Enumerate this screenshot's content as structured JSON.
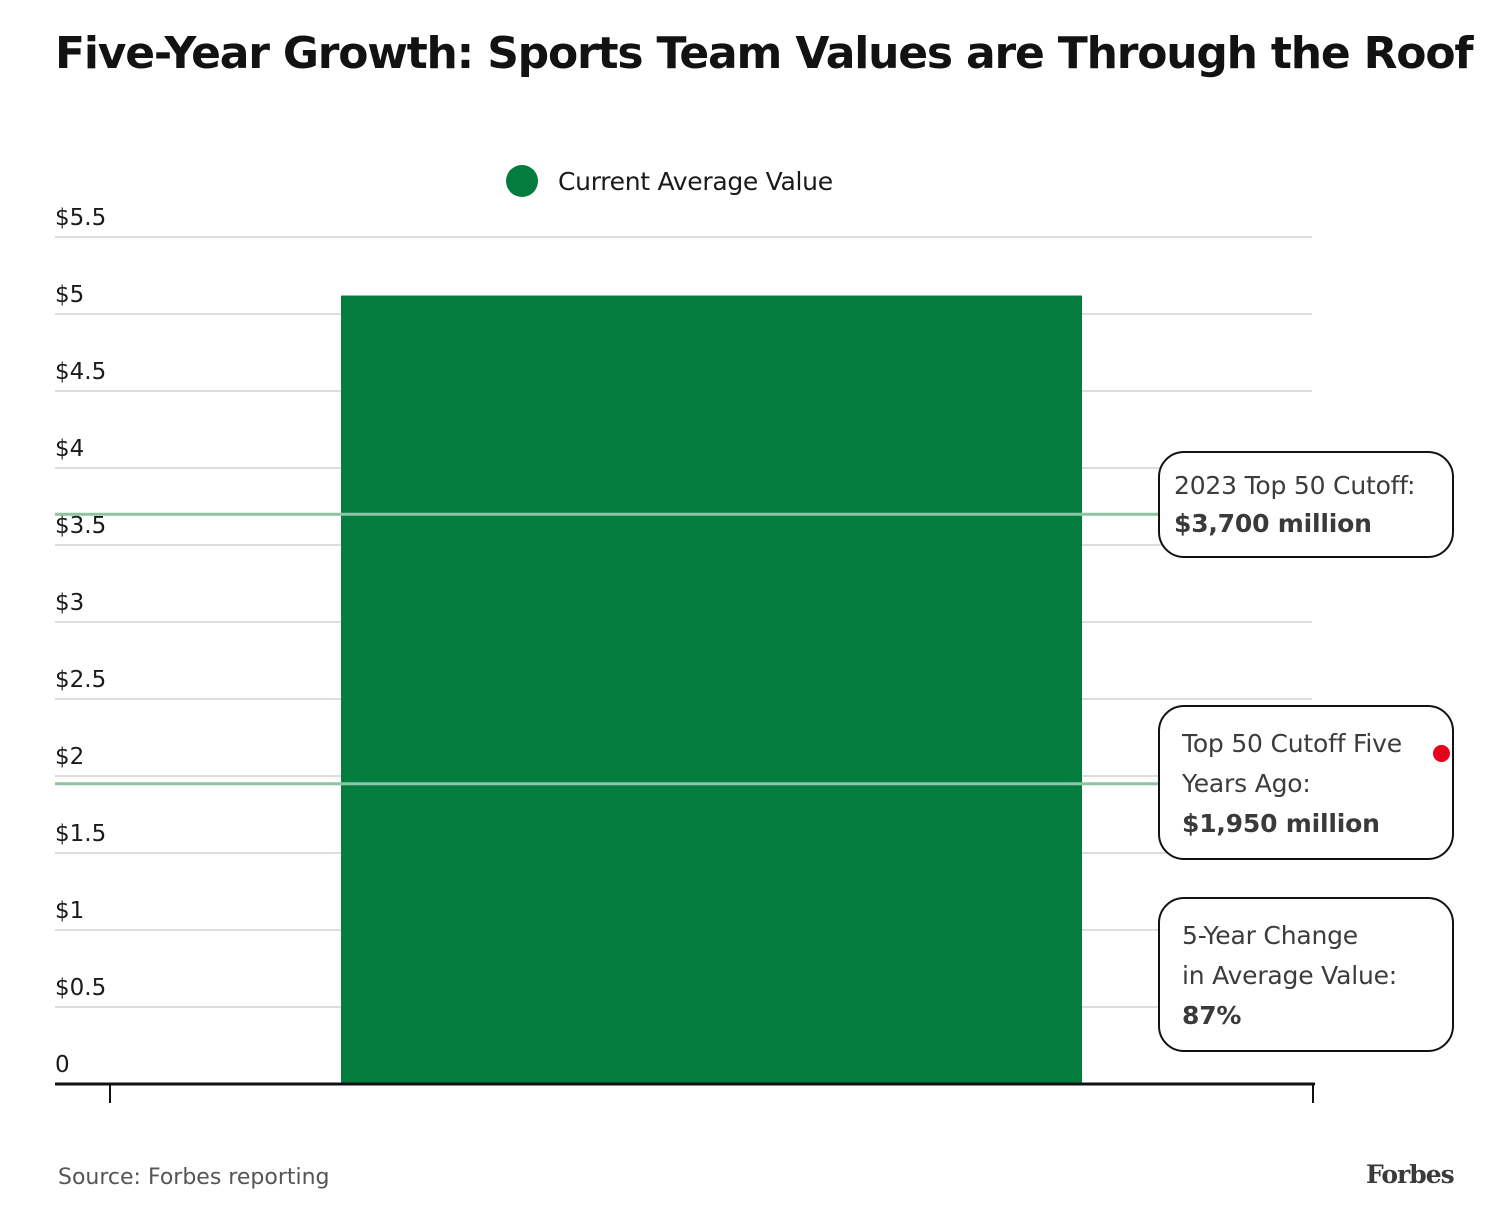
{
  "colors": {
    "bar": "#047c3e",
    "reference_line": "#8cc4a4",
    "grid": "#d2d2d2",
    "axis": "#121212",
    "marker": "#e8001c"
  },
  "chart_data": {
    "type": "bar",
    "title": "Five-Year Growth: Sports Team Values are Through the Roof",
    "categories": [
      ""
    ],
    "series": [
      {
        "name": "Current Average Value",
        "values": [
          5.12
        ]
      }
    ],
    "ylim": [
      0,
      5.5
    ],
    "y_ticks": [
      0,
      0.5,
      1,
      1.5,
      2,
      2.5,
      3,
      3.5,
      4,
      4.5,
      5,
      5.5
    ],
    "y_tick_labels": [
      "0",
      "$0.5",
      "$1",
      "$1.5",
      "$2",
      "$2.5",
      "$3",
      "$3.5",
      "$4",
      "$4.5",
      "$5",
      "$5.5"
    ],
    "grid": true,
    "legend_position": "top-center",
    "reference_lines": [
      {
        "value": 3.7
      },
      {
        "value": 1.95
      }
    ],
    "annotations": [
      {
        "lines": [
          "2023 Top 50 Cutoff:"
        ],
        "value": "$3,700 million"
      },
      {
        "lines": [
          "Top 50 Cutoff Five",
          "Years Ago:"
        ],
        "value": "$1,950 million"
      },
      {
        "lines": [
          "5-Year Change",
          "in Average Value:"
        ],
        "value": "87%"
      }
    ]
  },
  "footer": {
    "source": "Source: Forbes reporting",
    "brand": "Forbes"
  }
}
